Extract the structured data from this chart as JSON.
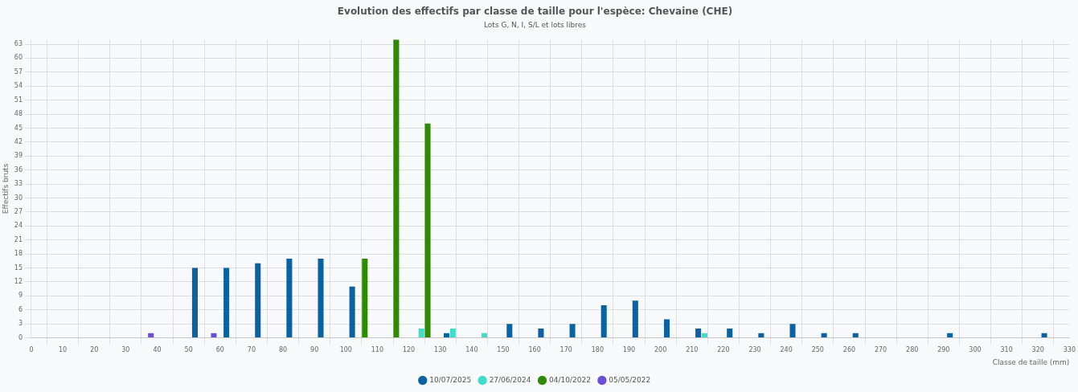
{
  "chart_data": {
    "type": "bar",
    "title": "Evolution des effectifs par classe de taille pour l'espèce: Chevaine (CHE)",
    "subtitle": "Lots G, N, I, S/L et lots libres",
    "xlabel": "Classe de taille (mm)",
    "ylabel": "Effectifs bruts",
    "x": [
      35,
      55,
      65,
      75,
      85,
      95,
      105,
      115,
      125,
      135,
      145,
      155,
      165,
      175,
      185,
      195,
      205,
      215,
      225,
      235,
      245,
      255,
      265,
      295,
      325
    ],
    "series": [
      {
        "name": "10/07/2025",
        "color": "#0a62a3",
        "values": [
          null,
          15,
          15,
          16,
          17,
          17,
          11,
          null,
          null,
          1,
          null,
          3,
          2,
          3,
          7,
          8,
          4,
          2,
          2,
          1,
          3,
          1,
          1,
          1,
          1
        ]
      },
      {
        "name": "27/06/2024",
        "color": "#40dcc8",
        "values": [
          null,
          null,
          null,
          null,
          null,
          null,
          null,
          null,
          2,
          2,
          1,
          null,
          null,
          null,
          null,
          null,
          null,
          1,
          null,
          null,
          null,
          null,
          null,
          null,
          null
        ]
      },
      {
        "name": "04/10/2022",
        "color": "#2e8a00",
        "values": [
          null,
          null,
          null,
          null,
          null,
          null,
          17,
          64,
          46,
          null,
          null,
          null,
          null,
          null,
          null,
          null,
          null,
          null,
          null,
          null,
          null,
          null,
          null,
          null,
          null
        ]
      },
      {
        "name": "05/05/2022",
        "color": "#6a4fd6",
        "values": [
          1,
          1,
          null,
          null,
          null,
          null,
          null,
          null,
          null,
          null,
          null,
          null,
          null,
          null,
          null,
          null,
          null,
          null,
          null,
          null,
          null,
          null,
          null,
          null,
          null
        ]
      }
    ],
    "xlim": [
      0,
      330
    ],
    "xticks": [
      0,
      10,
      20,
      30,
      40,
      50,
      60,
      70,
      80,
      90,
      100,
      110,
      120,
      130,
      140,
      150,
      160,
      170,
      180,
      190,
      200,
      210,
      220,
      230,
      240,
      250,
      260,
      270,
      280,
      290,
      300,
      310,
      320,
      330
    ],
    "ylim": [
      0,
      64
    ],
    "yticks": [
      0,
      3,
      6,
      9,
      12,
      15,
      18,
      21,
      24,
      27,
      30,
      33,
      36,
      39,
      42,
      45,
      48,
      51,
      54,
      57,
      60,
      63
    ],
    "grid": true,
    "legend": "bottom"
  }
}
